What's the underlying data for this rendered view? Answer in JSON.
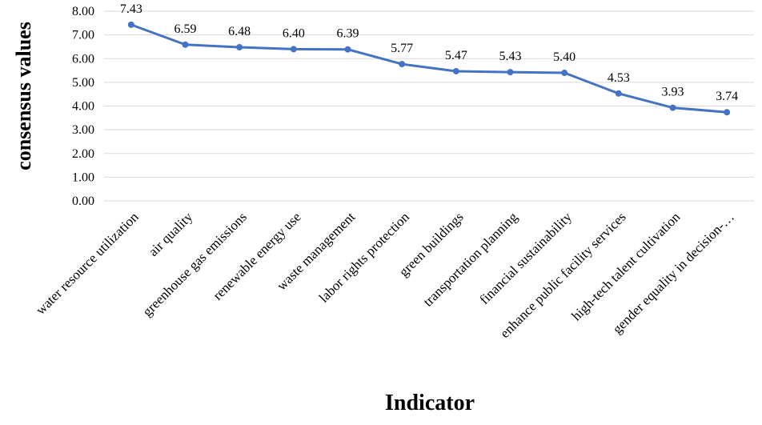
{
  "chart_data": {
    "type": "line",
    "title": "",
    "xlabel": "Indicator",
    "ylabel": "consensus values",
    "ylim": [
      0,
      8
    ],
    "ytick_step": 1,
    "ytick_labels": [
      "0.00",
      "1.00",
      "2.00",
      "3.00",
      "4.00",
      "5.00",
      "6.00",
      "7.00",
      "8.00"
    ],
    "grid": true,
    "legend": "none",
    "categories": [
      "water resource utilization",
      "air quality",
      "greenhouse gas emissions",
      "renewable energy use",
      "waste management",
      "labor rights protection",
      "green buildings",
      "transportation planning",
      "financial sustainability",
      "enhance public facility services",
      "high-tech talent cultivation",
      "gender equality in decision-…"
    ],
    "series": [
      {
        "values": [
          7.43,
          6.59,
          6.48,
          6.4,
          6.39,
          5.77,
          5.47,
          5.43,
          5.4,
          4.53,
          3.93,
          3.74
        ],
        "value_labels": [
          "7.43",
          "6.59",
          "6.48",
          "6.40",
          "6.39",
          "5.77",
          "5.47",
          "5.43",
          "5.40",
          "4.53",
          "3.93",
          "3.74"
        ],
        "color": "#4472C4"
      }
    ]
  }
}
